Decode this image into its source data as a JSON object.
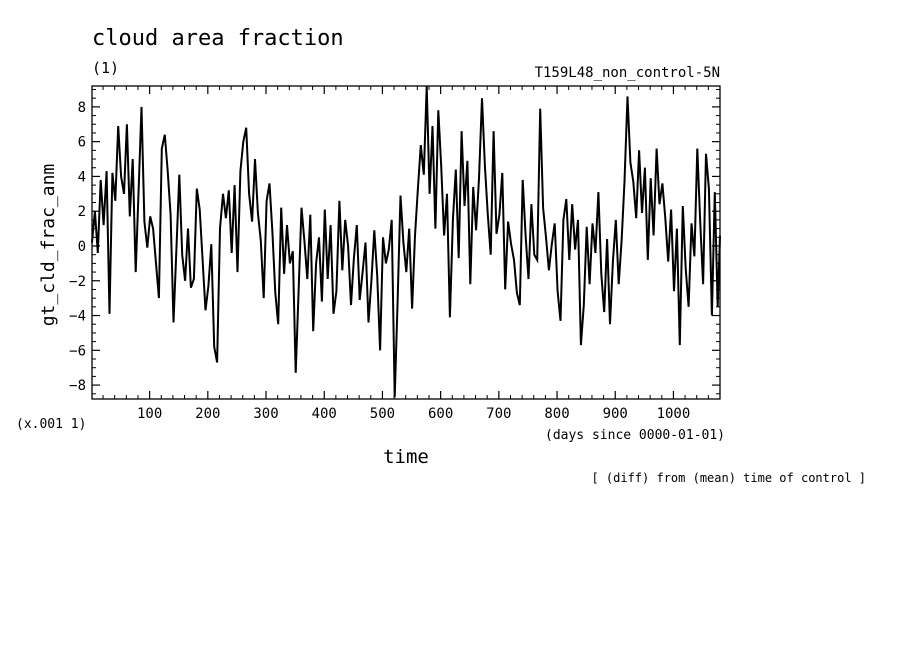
{
  "header": {
    "title": "cloud area fraction",
    "units": "(1)",
    "run_label": "T159L48_non_control-5N",
    "scale_factor": "(x.001 1)",
    "x_units": "(days since 0000-01-01)",
    "x_title": "time",
    "footnote": "[ (diff) from (mean) time of control ]"
  },
  "chart_data": {
    "type": "line",
    "title": "cloud area fraction",
    "xlabel": "time",
    "ylabel": "gt_cld_frac_anm",
    "xlim": [
      1,
      1080
    ],
    "ylim": [
      -8.8,
      9.2
    ],
    "x_ticks": [
      100,
      200,
      300,
      400,
      500,
      600,
      700,
      800,
      900,
      1000
    ],
    "y_ticks": [
      -8,
      -6,
      -4,
      -2,
      0,
      2,
      4,
      6,
      8
    ],
    "grid": false,
    "series": [
      {
        "points": [
          [
            1,
            0.2
          ],
          [
            6,
            2.0
          ],
          [
            11,
            -0.4
          ],
          [
            16,
            3.8
          ],
          [
            21,
            1.2
          ],
          [
            26,
            4.3
          ],
          [
            31,
            -3.9
          ],
          [
            36,
            4.2
          ],
          [
            41,
            2.6
          ],
          [
            46,
            6.9
          ],
          [
            51,
            4.0
          ],
          [
            56,
            3.0
          ],
          [
            61,
            7.0
          ],
          [
            66,
            1.7
          ],
          [
            71,
            5.0
          ],
          [
            76,
            -1.5
          ],
          [
            81,
            3.2
          ],
          [
            86,
            8.0
          ],
          [
            91,
            1.4
          ],
          [
            96,
            -0.1
          ],
          [
            101,
            1.7
          ],
          [
            106,
            1.0
          ],
          [
            111,
            -1.0
          ],
          [
            116,
            -3.0
          ],
          [
            121,
            5.6
          ],
          [
            126,
            6.4
          ],
          [
            131,
            4.3
          ],
          [
            136,
            1.8
          ],
          [
            141,
            -4.4
          ],
          [
            146,
            -0.2
          ],
          [
            151,
            4.1
          ],
          [
            156,
            -0.5
          ],
          [
            161,
            -2.0
          ],
          [
            166,
            1.0
          ],
          [
            171,
            -2.4
          ],
          [
            176,
            -1.9
          ],
          [
            181,
            3.3
          ],
          [
            186,
            2.1
          ],
          [
            191,
            -0.8
          ],
          [
            196,
            -3.7
          ],
          [
            201,
            -2.3
          ],
          [
            206,
            0.1
          ],
          [
            211,
            -5.8
          ],
          [
            216,
            -6.7
          ],
          [
            221,
            1.0
          ],
          [
            226,
            3.0
          ],
          [
            231,
            1.6
          ],
          [
            236,
            3.2
          ],
          [
            241,
            -0.4
          ],
          [
            246,
            3.5
          ],
          [
            251,
            -1.5
          ],
          [
            256,
            4.3
          ],
          [
            261,
            6.0
          ],
          [
            266,
            6.8
          ],
          [
            271,
            3.0
          ],
          [
            276,
            1.4
          ],
          [
            281,
            5.0
          ],
          [
            286,
            1.9
          ],
          [
            291,
            0.3
          ],
          [
            296,
            -3.0
          ],
          [
            301,
            2.6
          ],
          [
            306,
            3.6
          ],
          [
            311,
            0.8
          ],
          [
            316,
            -2.7
          ],
          [
            321,
            -4.5
          ],
          [
            326,
            2.2
          ],
          [
            331,
            -1.6
          ],
          [
            336,
            1.2
          ],
          [
            341,
            -1.0
          ],
          [
            346,
            -0.3
          ],
          [
            351,
            -7.3
          ],
          [
            356,
            -2.6
          ],
          [
            361,
            2.2
          ],
          [
            366,
            0.3
          ],
          [
            371,
            -1.9
          ],
          [
            376,
            1.8
          ],
          [
            381,
            -4.9
          ],
          [
            386,
            -1.0
          ],
          [
            391,
            0.5
          ],
          [
            396,
            -3.2
          ],
          [
            401,
            2.1
          ],
          [
            406,
            -1.9
          ],
          [
            411,
            1.2
          ],
          [
            416,
            -3.9
          ],
          [
            421,
            -2.6
          ],
          [
            426,
            2.6
          ],
          [
            431,
            -1.4
          ],
          [
            436,
            1.5
          ],
          [
            441,
            0.0
          ],
          [
            446,
            -3.4
          ],
          [
            451,
            -0.7
          ],
          [
            456,
            1.2
          ],
          [
            461,
            -3.1
          ],
          [
            466,
            -1.5
          ],
          [
            471,
            0.2
          ],
          [
            476,
            -4.4
          ],
          [
            481,
            -2.0
          ],
          [
            486,
            0.9
          ],
          [
            491,
            -1.7
          ],
          [
            496,
            -6.0
          ],
          [
            501,
            0.5
          ],
          [
            506,
            -1.0
          ],
          [
            511,
            -0.2
          ],
          [
            516,
            1.5
          ],
          [
            521,
            -8.7
          ],
          [
            526,
            -3.2
          ],
          [
            531,
            2.9
          ],
          [
            536,
            0.2
          ],
          [
            541,
            -1.5
          ],
          [
            546,
            1.0
          ],
          [
            551,
            -3.6
          ],
          [
            556,
            0.6
          ],
          [
            561,
            3.3
          ],
          [
            566,
            5.8
          ],
          [
            571,
            4.1
          ],
          [
            576,
            9.2
          ],
          [
            581,
            3.0
          ],
          [
            586,
            6.9
          ],
          [
            591,
            1.0
          ],
          [
            596,
            7.8
          ],
          [
            601,
            4.6
          ],
          [
            606,
            0.6
          ],
          [
            611,
            3.0
          ],
          [
            616,
            -4.1
          ],
          [
            621,
            1.5
          ],
          [
            626,
            4.4
          ],
          [
            631,
            -0.7
          ],
          [
            636,
            6.6
          ],
          [
            641,
            2.3
          ],
          [
            646,
            4.9
          ],
          [
            651,
            -2.2
          ],
          [
            656,
            3.4
          ],
          [
            661,
            0.9
          ],
          [
            666,
            3.9
          ],
          [
            671,
            8.5
          ],
          [
            676,
            4.6
          ],
          [
            681,
            1.8
          ],
          [
            686,
            -0.5
          ],
          [
            691,
            6.6
          ],
          [
            696,
            0.7
          ],
          [
            701,
            1.8
          ],
          [
            706,
            4.2
          ],
          [
            711,
            -2.5
          ],
          [
            716,
            1.4
          ],
          [
            721,
            0.1
          ],
          [
            726,
            -0.8
          ],
          [
            731,
            -2.7
          ],
          [
            736,
            -3.4
          ],
          [
            741,
            3.8
          ],
          [
            746,
            0.6
          ],
          [
            751,
            -1.9
          ],
          [
            756,
            2.4
          ],
          [
            761,
            -0.5
          ],
          [
            766,
            -0.8
          ],
          [
            771,
            7.9
          ],
          [
            776,
            2.2
          ],
          [
            781,
            0.5
          ],
          [
            786,
            -1.4
          ],
          [
            791,
            0.1
          ],
          [
            796,
            1.3
          ],
          [
            801,
            -2.6
          ],
          [
            806,
            -4.3
          ],
          [
            811,
            1.5
          ],
          [
            816,
            2.7
          ],
          [
            821,
            -0.8
          ],
          [
            826,
            2.4
          ],
          [
            831,
            -0.2
          ],
          [
            836,
            1.5
          ],
          [
            841,
            -5.7
          ],
          [
            846,
            -3.4
          ],
          [
            851,
            1.1
          ],
          [
            856,
            -2.2
          ],
          [
            861,
            1.3
          ],
          [
            866,
            -0.4
          ],
          [
            871,
            3.1
          ],
          [
            876,
            -1.6
          ],
          [
            881,
            -3.8
          ],
          [
            886,
            0.4
          ],
          [
            891,
            -4.5
          ],
          [
            896,
            -0.9
          ],
          [
            901,
            1.5
          ],
          [
            906,
            -2.2
          ],
          [
            911,
            0.3
          ],
          [
            916,
            3.7
          ],
          [
            921,
            8.6
          ],
          [
            926,
            4.8
          ],
          [
            931,
            3.7
          ],
          [
            936,
            1.6
          ],
          [
            941,
            5.5
          ],
          [
            946,
            1.9
          ],
          [
            951,
            4.5
          ],
          [
            956,
            -0.8
          ],
          [
            961,
            3.9
          ],
          [
            966,
            0.6
          ],
          [
            971,
            5.6
          ],
          [
            976,
            2.4
          ],
          [
            981,
            3.6
          ],
          [
            986,
            1.6
          ],
          [
            991,
            -0.9
          ],
          [
            996,
            2.1
          ],
          [
            1001,
            -2.6
          ],
          [
            1006,
            1.0
          ],
          [
            1011,
            -5.7
          ],
          [
            1016,
            2.3
          ],
          [
            1021,
            -1.3
          ],
          [
            1026,
            -3.5
          ],
          [
            1031,
            1.3
          ],
          [
            1036,
            -0.6
          ],
          [
            1041,
            5.6
          ],
          [
            1046,
            1.4
          ],
          [
            1051,
            -2.2
          ],
          [
            1056,
            5.3
          ],
          [
            1061,
            3.3
          ],
          [
            1066,
            -4.0
          ],
          [
            1071,
            3.1
          ],
          [
            1076,
            -3.5
          ],
          [
            1080,
            0.6
          ]
        ]
      }
    ]
  }
}
